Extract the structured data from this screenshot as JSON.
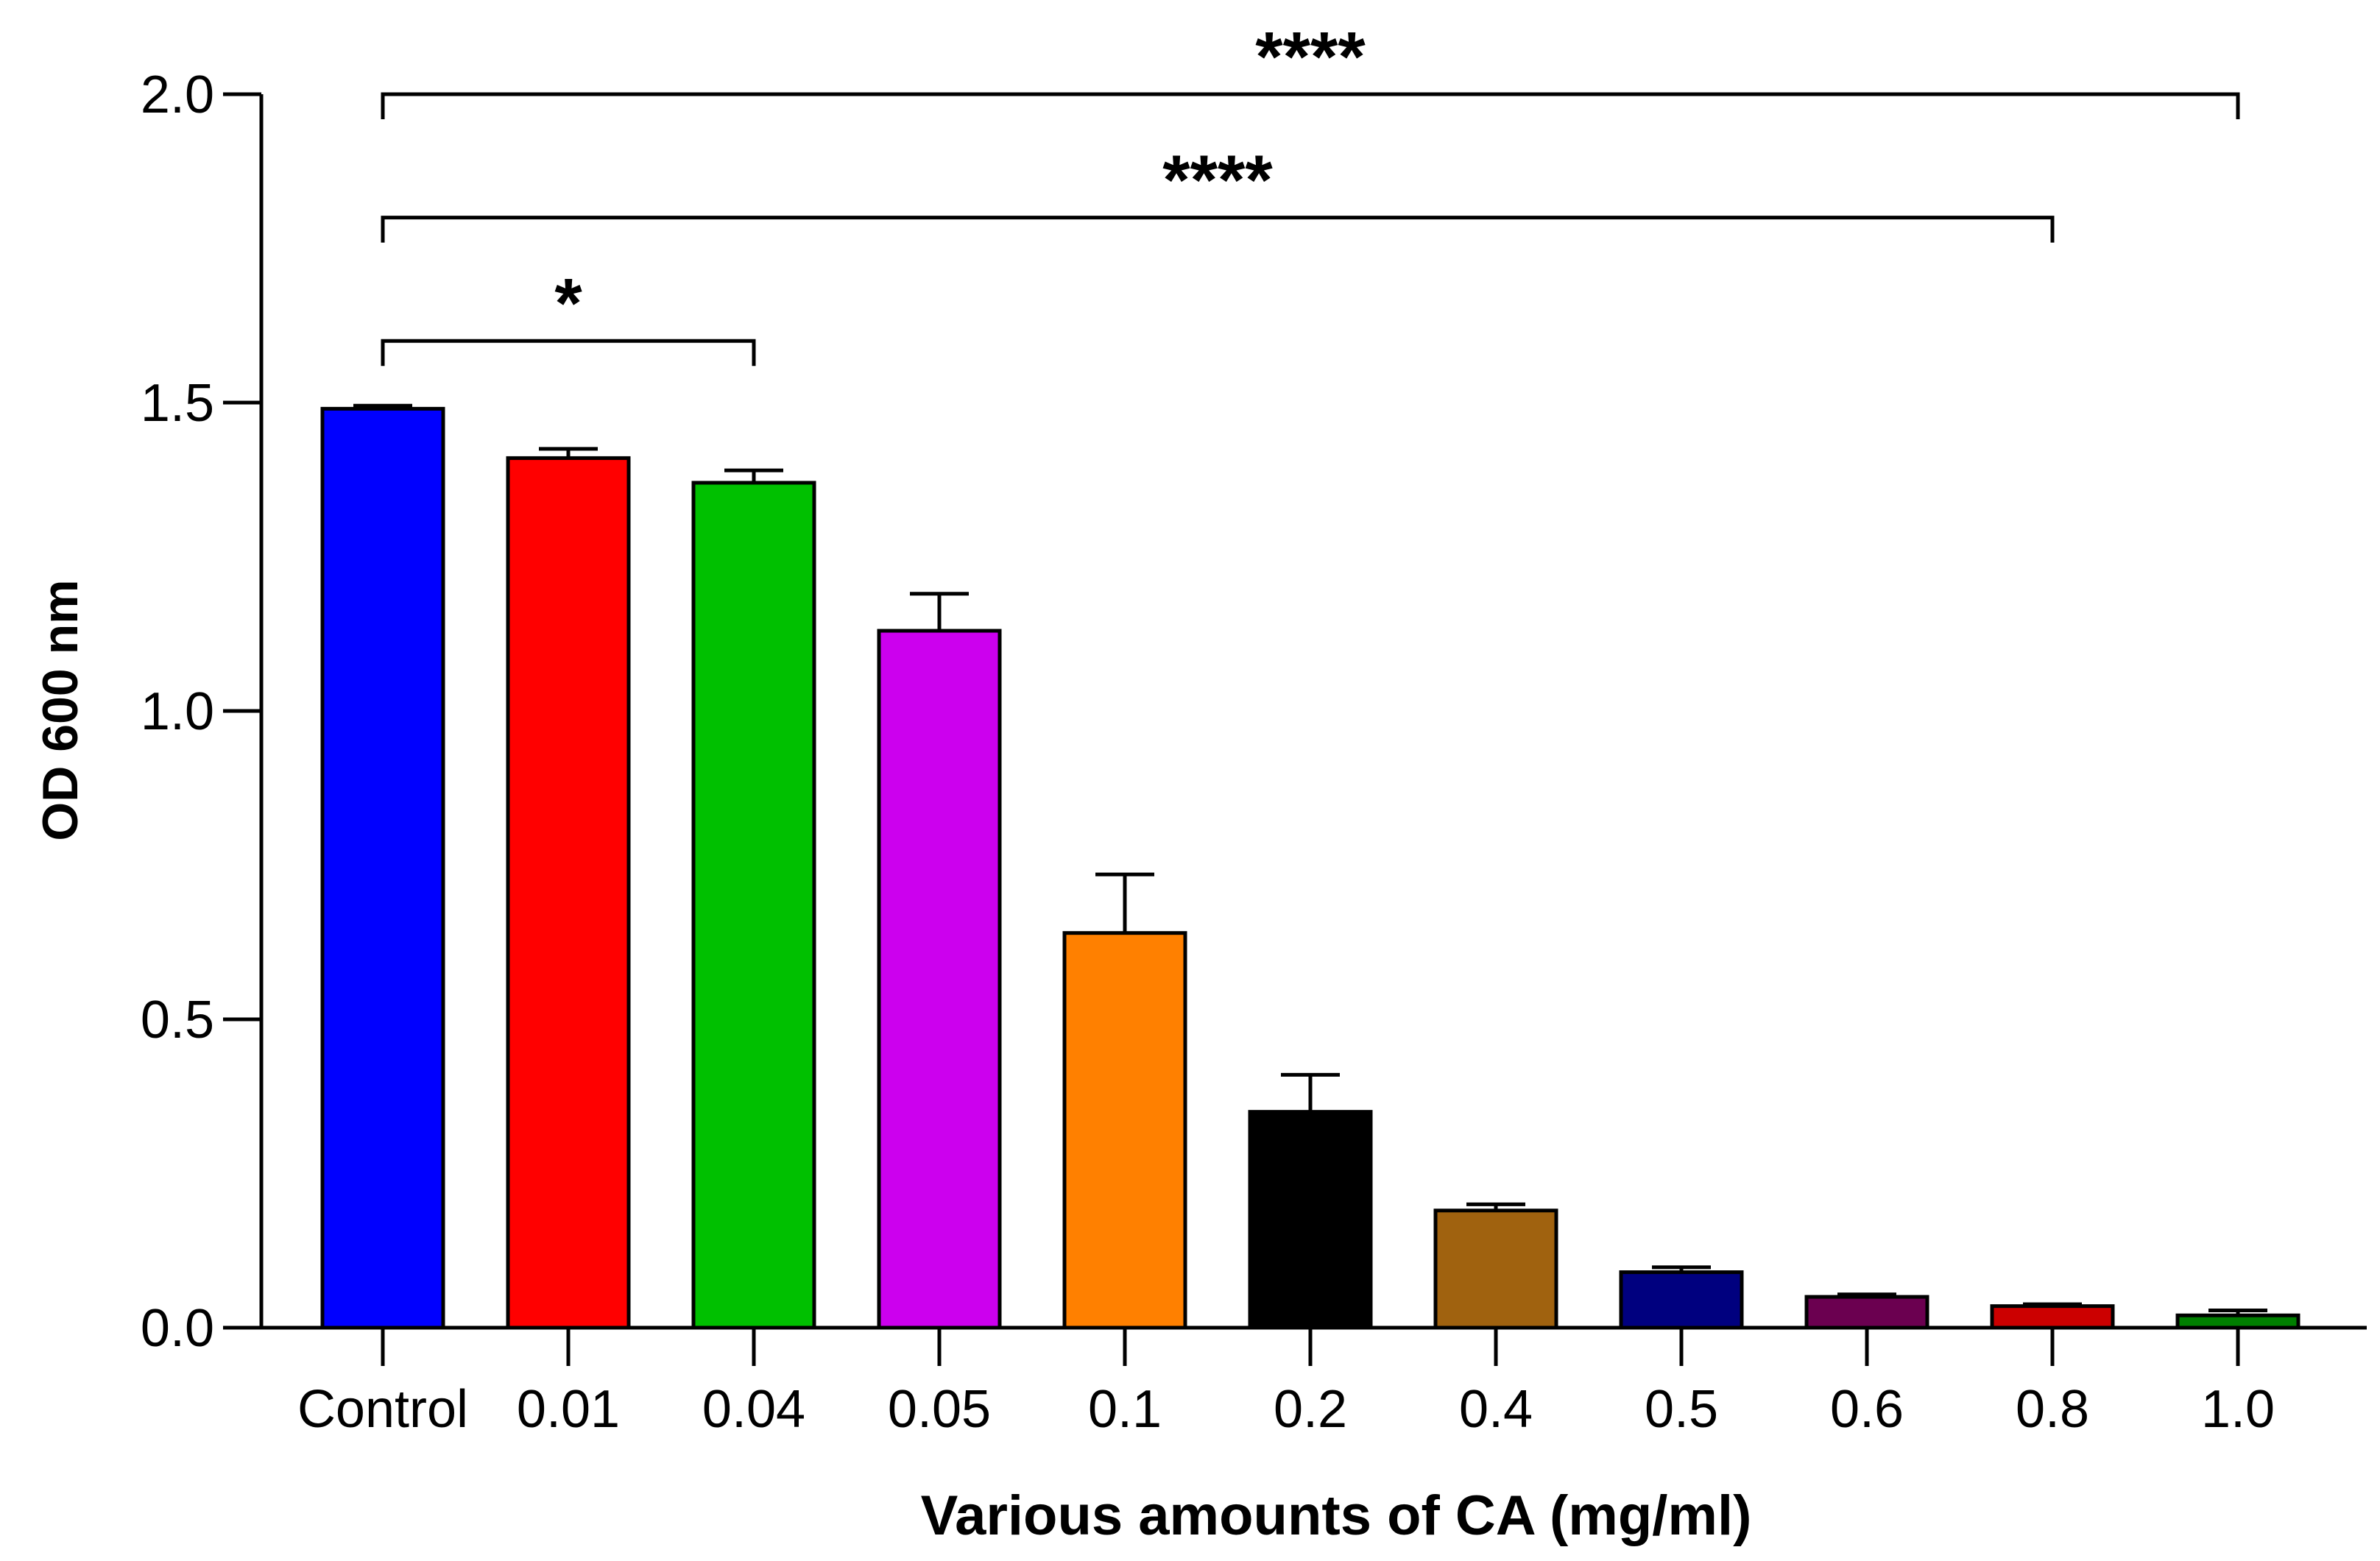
{
  "chart_data": {
    "type": "bar",
    "title": "",
    "xlabel": "Various amounts of CA (mg/ml)",
    "ylabel": "OD 600 nm",
    "ylim": [
      0,
      2.0
    ],
    "yticks": [
      0.0,
      0.5,
      1.0,
      1.5,
      2.0
    ],
    "ytick_labels": [
      "0.0",
      "0.5",
      "1.0",
      "1.5",
      "2.0"
    ],
    "categories": [
      "Control",
      "0.01",
      "0.04",
      "0.05",
      "0.1",
      "0.2",
      "0.4",
      "0.5",
      "0.6",
      "0.8",
      "1.0"
    ],
    "values": [
      1.49,
      1.41,
      1.37,
      1.13,
      0.64,
      0.35,
      0.19,
      0.09,
      0.05,
      0.035,
      0.02
    ],
    "errors": [
      0.005,
      0.015,
      0.02,
      0.06,
      0.095,
      0.06,
      0.01,
      0.008,
      0.004,
      0.003,
      0.008
    ],
    "colors": [
      "#0000FF",
      "#FF0000",
      "#00C000",
      "#CC00EE",
      "#FF8000",
      "#000000",
      "#A0620F",
      "#00007F",
      "#6B0050",
      "#CC0000",
      "#007F00"
    ],
    "grid": false,
    "significance": [
      {
        "from": "Control",
        "to": "0.04",
        "label": "*",
        "y": 1.6
      },
      {
        "from": "Control",
        "to": "0.8",
        "label": "****",
        "y": 1.8
      },
      {
        "from": "Control",
        "to": "1.0",
        "label": "****",
        "y": 2.0
      }
    ]
  }
}
